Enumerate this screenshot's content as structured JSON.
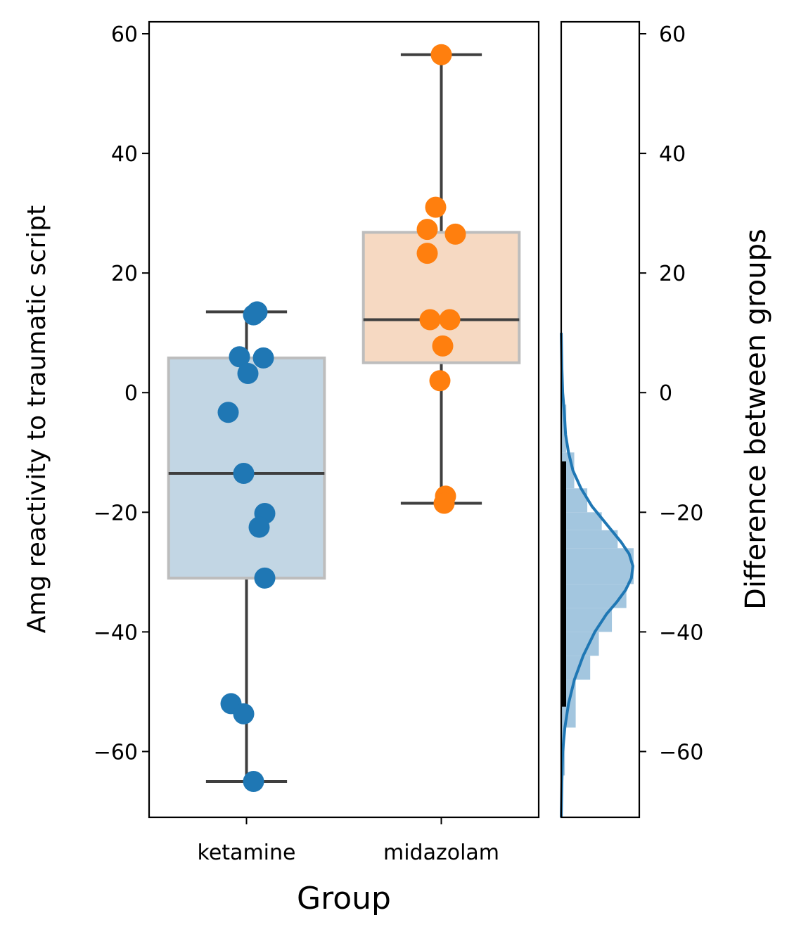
{
  "chart_data": {
    "type": "box",
    "panels": [
      {
        "kind": "box-strip",
        "xlabel": "Group",
        "ylabel": "Amg reactivity to traumatic script",
        "ylim": [
          -71,
          62
        ],
        "yticks": [
          -60,
          -40,
          -20,
          0,
          20,
          40,
          60
        ],
        "categories": [
          "ketamine",
          "midazolam"
        ],
        "groups": [
          {
            "name": "ketamine",
            "color": "#1f77b4",
            "box_fill": "#c2d6e4",
            "box": {
              "q1": -31,
              "median": -13.5,
              "q3": 5.8,
              "whisker_low": -65,
              "whisker_high": 13.5
            },
            "points": [
              13.5,
              13.0,
              6.0,
              5.8,
              3.2,
              -3.3,
              -13.5,
              -20.2,
              -22.5,
              -31.0,
              -52.0,
              -53.7,
              -65.0
            ]
          },
          {
            "name": "midazolam",
            "color": "#ff7f0e",
            "box_fill": "#f6d9c2",
            "box": {
              "q1": 5,
              "median": 12.2,
              "q3": 26.8,
              "whisker_low": -18.5,
              "whisker_high": 56.5
            },
            "points": [
              56.5,
              31.0,
              27.3,
              26.5,
              23.3,
              12.2,
              12.2,
              7.8,
              2.0,
              -17.3,
              -18.5
            ]
          }
        ]
      },
      {
        "kind": "density",
        "ylabel": "Difference between groups",
        "ylim": [
          -71,
          62
        ],
        "yticks": [
          -60,
          -40,
          -20,
          0,
          20,
          40,
          60
        ],
        "interval": [
          -52.5,
          -11.5
        ],
        "kde_color": "#1f77b4",
        "hist_color": "#a3c6df",
        "kde": [
          {
            "y": -71,
            "d": 0.0
          },
          {
            "y": -65,
            "d": 0.01
          },
          {
            "y": -60,
            "d": 0.02
          },
          {
            "y": -56,
            "d": 0.05
          },
          {
            "y": -52,
            "d": 0.1
          },
          {
            "y": -48,
            "d": 0.18
          },
          {
            "y": -44,
            "d": 0.3
          },
          {
            "y": -40,
            "d": 0.46
          },
          {
            "y": -37,
            "d": 0.62
          },
          {
            "y": -35,
            "d": 0.76
          },
          {
            "y": -33,
            "d": 0.88
          },
          {
            "y": -31,
            "d": 0.96
          },
          {
            "y": -29,
            "d": 0.98
          },
          {
            "y": -27,
            "d": 0.93
          },
          {
            "y": -25,
            "d": 0.82
          },
          {
            "y": -22,
            "d": 0.62
          },
          {
            "y": -19,
            "d": 0.42
          },
          {
            "y": -16,
            "d": 0.27
          },
          {
            "y": -13,
            "d": 0.16
          },
          {
            "y": -10,
            "d": 0.1
          },
          {
            "y": -7,
            "d": 0.06
          },
          {
            "y": -3,
            "d": 0.04
          },
          {
            "y": 0,
            "d": 0.02
          },
          {
            "y": 4,
            "d": 0.01
          },
          {
            "y": 10,
            "d": 0.0
          }
        ],
        "hist": [
          {
            "y0": -71,
            "y1": -64,
            "d": 0.02
          },
          {
            "y0": -64,
            "y1": -56,
            "d": 0.05
          },
          {
            "y0": -56,
            "y1": -48,
            "d": 0.2
          },
          {
            "y0": -48,
            "y1": -44,
            "d": 0.4
          },
          {
            "y0": -44,
            "y1": -40,
            "d": 0.52
          },
          {
            "y0": -40,
            "y1": -36,
            "d": 0.7
          },
          {
            "y0": -36,
            "y1": -32,
            "d": 0.9
          },
          {
            "y0": -32,
            "y1": -26,
            "d": 1.0
          },
          {
            "y0": -26,
            "y1": -23,
            "d": 0.78
          },
          {
            "y0": -23,
            "y1": -20,
            "d": 0.56
          },
          {
            "y0": -20,
            "y1": -16,
            "d": 0.36
          },
          {
            "y0": -16,
            "y1": -10,
            "d": 0.18
          },
          {
            "y0": -10,
            "y1": -2,
            "d": 0.07
          },
          {
            "y0": -2,
            "y1": 10,
            "d": 0.02
          }
        ]
      }
    ]
  }
}
